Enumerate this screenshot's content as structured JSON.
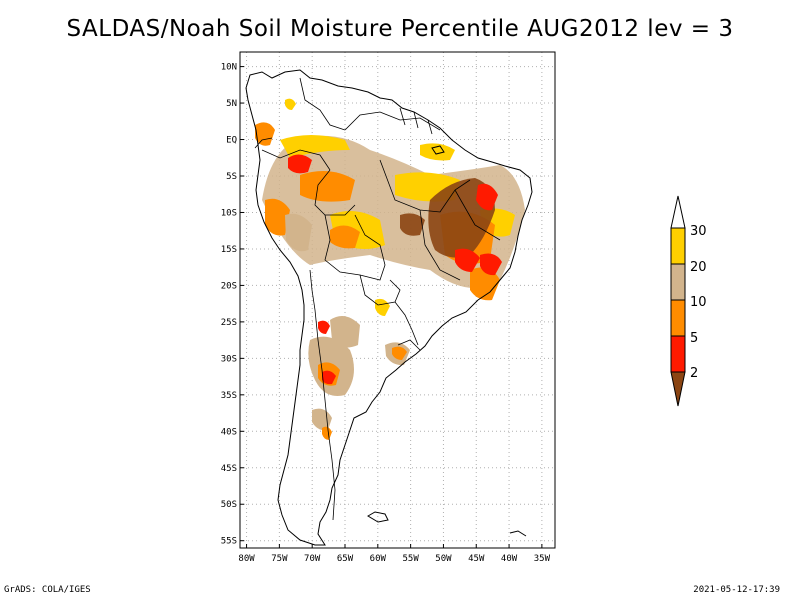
{
  "title": "SALDAS/Noah Soil Moisture Percentile AUG2012 lev = 3",
  "footer_left": "GrADS: COLA/IGES",
  "footer_right": "2021-05-12-17:39",
  "map": {
    "lon_range": [
      -81,
      -33
    ],
    "lat_range": [
      -56,
      12
    ],
    "lon_ticks": [
      {
        "value": -80,
        "label": "80W"
      },
      {
        "value": -75,
        "label": "75W"
      },
      {
        "value": -70,
        "label": "70W"
      },
      {
        "value": -65,
        "label": "65W"
      },
      {
        "value": -60,
        "label": "60W"
      },
      {
        "value": -55,
        "label": "55W"
      },
      {
        "value": -50,
        "label": "50W"
      },
      {
        "value": -45,
        "label": "45W"
      },
      {
        "value": -40,
        "label": "40W"
      },
      {
        "value": -35,
        "label": "35W"
      }
    ],
    "lat_ticks": [
      {
        "value": 10,
        "label": "10N"
      },
      {
        "value": 5,
        "label": "5N"
      },
      {
        "value": 0,
        "label": "EQ"
      },
      {
        "value": -5,
        "label": "5S"
      },
      {
        "value": -10,
        "label": "10S"
      },
      {
        "value": -15,
        "label": "15S"
      },
      {
        "value": -20,
        "label": "20S"
      },
      {
        "value": -25,
        "label": "25S"
      },
      {
        "value": -30,
        "label": "30S"
      },
      {
        "value": -35,
        "label": "35S"
      },
      {
        "value": -40,
        "label": "40S"
      },
      {
        "value": -45,
        "label": "45S"
      },
      {
        "value": -50,
        "label": "50S"
      },
      {
        "value": -55,
        "label": "55S"
      }
    ],
    "grid": true
  },
  "colorbar": {
    "labels": [
      "30",
      "20",
      "10",
      "5",
      "2"
    ],
    "colors": {
      "above_30": "#ffffff",
      "20_30": "#ffd000",
      "10_20": "#d2b48c",
      "5_10": "#ff8c00",
      "2_5": "#ff1a00",
      "below_2": "#8b4513"
    }
  }
}
